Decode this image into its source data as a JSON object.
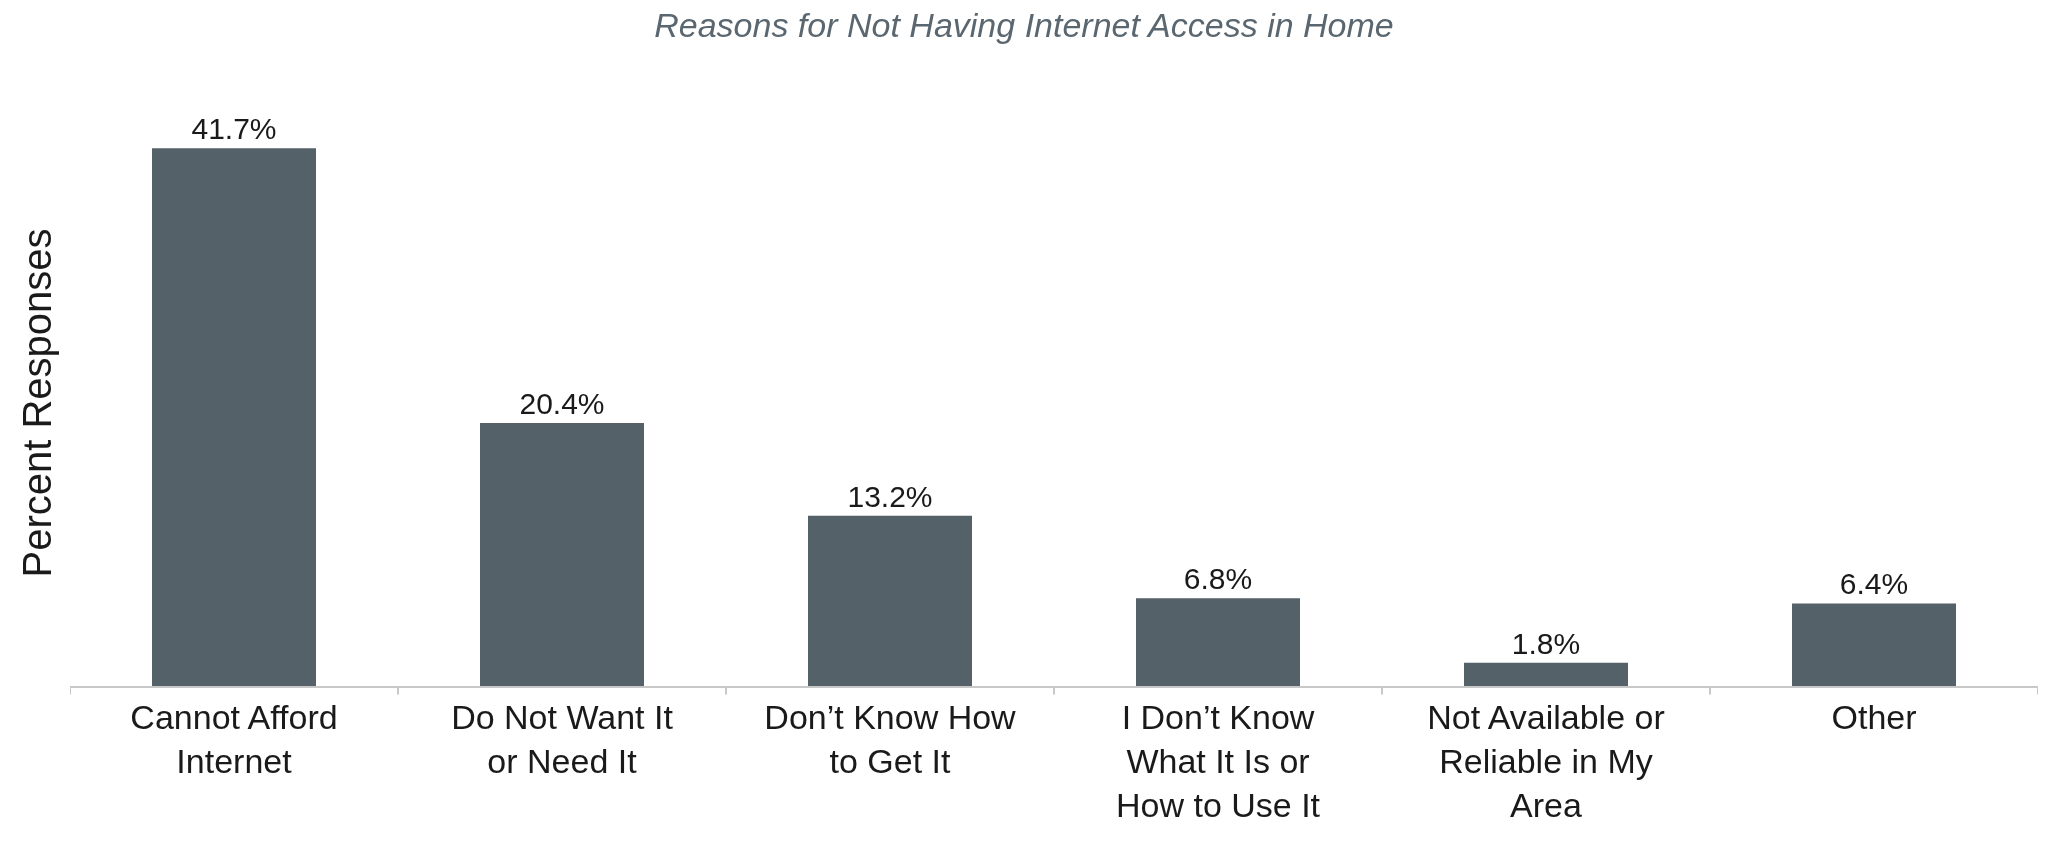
{
  "chart_data": {
    "type": "bar",
    "title": "Reasons for Not Having Internet Access in Home",
    "ylabel": "Percent Responses",
    "categories": [
      "Cannot Afford Internet",
      "Do Not Want It or Need It",
      "Don’t Know How to Get It",
      "I Don’t Know What It Is or How to Use It",
      "Not Available or Reliable in My Area",
      "Other"
    ],
    "values": [
      41.7,
      20.4,
      13.2,
      6.8,
      1.8,
      6.4
    ],
    "value_labels": [
      "41.7%",
      "20.4%",
      "13.2%",
      "6.8%",
      "1.8%",
      "6.4%"
    ],
    "color": "#546169",
    "tick_labels": "x"
  }
}
